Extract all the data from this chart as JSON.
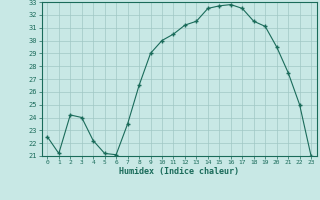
{
  "x": [
    0,
    1,
    2,
    3,
    4,
    5,
    6,
    7,
    8,
    9,
    10,
    11,
    12,
    13,
    14,
    15,
    16,
    17,
    18,
    19,
    20,
    21,
    22,
    23
  ],
  "y": [
    22.5,
    21.2,
    24.2,
    24.0,
    22.2,
    21.2,
    21.1,
    23.5,
    26.5,
    29.0,
    30.0,
    30.5,
    31.2,
    31.5,
    32.5,
    32.7,
    32.8,
    32.5,
    31.5,
    31.1,
    29.5,
    27.5,
    25.0,
    21.0
  ],
  "xlabel": "Humidex (Indice chaleur)",
  "ylim": [
    21,
    33
  ],
  "xlim": [
    -0.5,
    23.5
  ],
  "yticks": [
    21,
    22,
    23,
    24,
    25,
    26,
    27,
    28,
    29,
    30,
    31,
    32,
    33
  ],
  "xticks": [
    0,
    1,
    2,
    3,
    4,
    5,
    6,
    7,
    8,
    9,
    10,
    11,
    12,
    13,
    14,
    15,
    16,
    17,
    18,
    19,
    20,
    21,
    22,
    23
  ],
  "line_color": "#1a6b5a",
  "marker_color": "#1a6b5a",
  "bg_color": "#c8e8e5",
  "grid_color": "#a0c8c5",
  "xlabel_color": "#1a6b5a",
  "tick_color": "#1a6b5a",
  "spine_color": "#1a6b5a"
}
